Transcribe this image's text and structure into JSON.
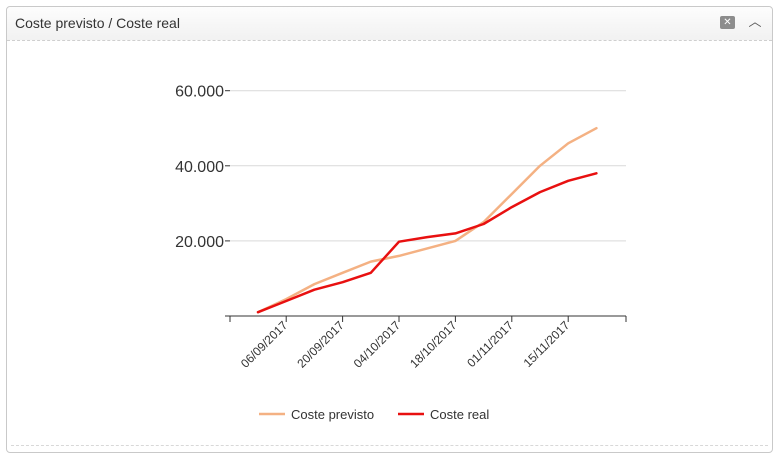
{
  "panel": {
    "title": "Coste previsto / Coste real",
    "close_icon": "close-icon",
    "collapse_icon": "chevron-up-icon"
  },
  "chart_data": {
    "type": "line",
    "x": [
      "30/08/2017",
      "06/09/2017",
      "13/09/2017",
      "20/09/2017",
      "27/09/2017",
      "04/10/2017",
      "11/10/2017",
      "18/10/2017",
      "25/10/2017",
      "01/11/2017",
      "08/11/2017",
      "15/11/2017",
      "22/11/2017"
    ],
    "x_tick_labels": [
      "06/09/2017",
      "20/09/2017",
      "04/10/2017",
      "18/10/2017",
      "01/11/2017",
      "15/11/2017"
    ],
    "y_tick_labels": [
      "20.000",
      "40.000",
      "60.000"
    ],
    "y_ticks": [
      20000,
      40000,
      60000
    ],
    "ylim": [
      0,
      60000
    ],
    "grid": true,
    "legend_position": "bottom",
    "series": [
      {
        "name": "Coste previsto",
        "color": "#f4b183",
        "values": [
          1000,
          4500,
          8500,
          11500,
          14500,
          16000,
          18000,
          20000,
          25000,
          32500,
          40000,
          46000,
          50000
        ]
      },
      {
        "name": "Coste real",
        "color": "#e81010",
        "values": [
          1000,
          4000,
          7000,
          9000,
          11500,
          19800,
          21000,
          22000,
          24500,
          29000,
          33000,
          36000,
          38000
        ]
      }
    ]
  }
}
